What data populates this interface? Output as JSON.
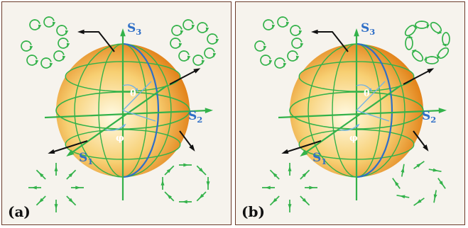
{
  "colors": {
    "background": "#f6f3ed",
    "frame": "#6b3a2a",
    "axis_green": "#33b24a",
    "axis_label_blue": "#2f6fc7",
    "meridian_blue": "#2f6fc7",
    "sphere_center": "#fffbe6",
    "sphere_edge": "#e07a10",
    "stokes_arrow": "#111111"
  },
  "panels": [
    {
      "label": "(a)",
      "axis_labels": {
        "s3": "S3",
        "s2": "S2",
        "s1": "S1"
      },
      "angle_labels": {
        "theta": "θ",
        "phi": "φ"
      },
      "top_left_pattern": "circular-loops-radially-arranged",
      "top_right_pattern": "circular-loops-azimuthally-arranged",
      "bottom_left_pattern": "radial-linear-polarization",
      "bottom_right_pattern": "azimuthal-linear-polarization"
    },
    {
      "label": "(b)",
      "axis_labels": {
        "s3": "S3",
        "s2": "S2",
        "s1": "S1"
      },
      "angle_labels": {
        "theta": "θ",
        "phi": "φ"
      },
      "top_left_pattern": "circular-loops-radially-arranged",
      "top_right_pattern": "elliptical-loops-tilted",
      "bottom_left_pattern": "radial-linear-polarization",
      "bottom_right_pattern": "tilted-linear-polarization"
    }
  ]
}
